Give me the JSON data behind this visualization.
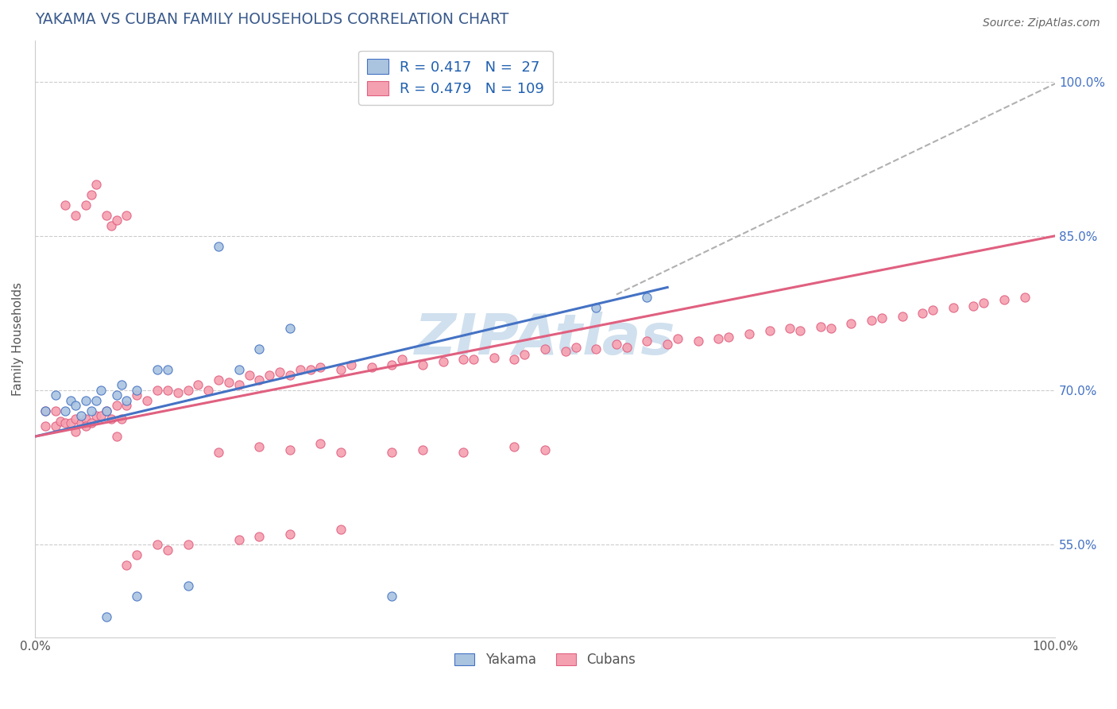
{
  "title": "YAKAMA VS CUBAN FAMILY HOUSEHOLDS CORRELATION CHART",
  "source": "Source: ZipAtlas.com",
  "ylabel": "Family Households",
  "xlim": [
    0.0,
    1.0
  ],
  "ylim": [
    0.46,
    1.04
  ],
  "title_color": "#3a5a8c",
  "title_fontsize": 13.5,
  "background_color": "#ffffff",
  "grid_color": "#cccccc",
  "yakama_color": "#aac4e0",
  "cuban_color": "#f5a0b0",
  "yakama_edge": "#4472c4",
  "cuban_edge": "#e06080",
  "trendline1_color": "#4472c4",
  "trendline2_color": "#e06080",
  "trendline3_color": "#b0b0b0",
  "right_ytick_labels": [
    "55.0%",
    "70.0%",
    "85.0%",
    "100.0%"
  ],
  "right_ytick_values": [
    0.55,
    0.7,
    0.85,
    1.0
  ],
  "ytick_color": "#4472c4",
  "xtick_color": "#555555",
  "yakama_label": "Yakama",
  "cuban_label": "Cubans",
  "legend_text_color": "#2060b0",
  "watermark_color": "#d0e0ee",
  "yak_trend_x0": 0.0,
  "yak_trend_x1": 0.62,
  "yak_trend_y0": 0.655,
  "yak_trend_y1": 0.8,
  "grey_trend_x0": 0.57,
  "grey_trend_x1": 1.0,
  "grey_trend_y0": 0.793,
  "grey_trend_y1": 0.998,
  "cub_trend_x0": 0.0,
  "cub_trend_x1": 1.0,
  "cub_trend_y0": 0.655,
  "cub_trend_y1": 0.85,
  "yakama_x": [
    0.01,
    0.02,
    0.03,
    0.035,
    0.04,
    0.045,
    0.05,
    0.055,
    0.06,
    0.065,
    0.07,
    0.08,
    0.085,
    0.09,
    0.1,
    0.12,
    0.13,
    0.18,
    0.2,
    0.22,
    0.25,
    0.35,
    0.55,
    0.6,
    0.07,
    0.1,
    0.15
  ],
  "yakama_y": [
    0.68,
    0.695,
    0.68,
    0.69,
    0.685,
    0.675,
    0.69,
    0.68,
    0.69,
    0.7,
    0.68,
    0.695,
    0.705,
    0.69,
    0.7,
    0.72,
    0.72,
    0.84,
    0.72,
    0.74,
    0.76,
    0.5,
    0.78,
    0.79,
    0.48,
    0.5,
    0.51
  ],
  "cuban_x": [
    0.01,
    0.01,
    0.02,
    0.02,
    0.025,
    0.03,
    0.035,
    0.04,
    0.04,
    0.045,
    0.05,
    0.05,
    0.055,
    0.06,
    0.065,
    0.07,
    0.075,
    0.08,
    0.085,
    0.09,
    0.1,
    0.11,
    0.12,
    0.13,
    0.14,
    0.15,
    0.16,
    0.17,
    0.18,
    0.19,
    0.2,
    0.21,
    0.22,
    0.23,
    0.24,
    0.25,
    0.26,
    0.27,
    0.28,
    0.3,
    0.31,
    0.33,
    0.35,
    0.36,
    0.38,
    0.4,
    0.42,
    0.43,
    0.45,
    0.47,
    0.48,
    0.5,
    0.52,
    0.53,
    0.55,
    0.57,
    0.58,
    0.6,
    0.62,
    0.63,
    0.65,
    0.67,
    0.68,
    0.7,
    0.72,
    0.74,
    0.75,
    0.77,
    0.78,
    0.8,
    0.82,
    0.83,
    0.85,
    0.87,
    0.88,
    0.9,
    0.92,
    0.93,
    0.95,
    0.97,
    0.3,
    0.35,
    0.38,
    0.42,
    0.47,
    0.5,
    0.18,
    0.22,
    0.25,
    0.28,
    0.08,
    0.09,
    0.1,
    0.12,
    0.13,
    0.15,
    0.2,
    0.22,
    0.25,
    0.3,
    0.03,
    0.04,
    0.05,
    0.055,
    0.06,
    0.07,
    0.075,
    0.08,
    0.09
  ],
  "cuban_y": [
    0.665,
    0.68,
    0.665,
    0.68,
    0.67,
    0.668,
    0.668,
    0.672,
    0.66,
    0.668,
    0.672,
    0.665,
    0.668,
    0.675,
    0.675,
    0.68,
    0.672,
    0.685,
    0.672,
    0.685,
    0.695,
    0.69,
    0.7,
    0.7,
    0.698,
    0.7,
    0.705,
    0.7,
    0.71,
    0.708,
    0.705,
    0.715,
    0.71,
    0.715,
    0.718,
    0.715,
    0.72,
    0.72,
    0.722,
    0.72,
    0.725,
    0.722,
    0.725,
    0.73,
    0.725,
    0.728,
    0.73,
    0.73,
    0.732,
    0.73,
    0.735,
    0.74,
    0.738,
    0.742,
    0.74,
    0.745,
    0.742,
    0.748,
    0.745,
    0.75,
    0.748,
    0.75,
    0.752,
    0.755,
    0.758,
    0.76,
    0.758,
    0.762,
    0.76,
    0.765,
    0.768,
    0.77,
    0.772,
    0.775,
    0.778,
    0.78,
    0.782,
    0.785,
    0.788,
    0.79,
    0.64,
    0.64,
    0.642,
    0.64,
    0.645,
    0.642,
    0.64,
    0.645,
    0.642,
    0.648,
    0.655,
    0.53,
    0.54,
    0.55,
    0.545,
    0.55,
    0.555,
    0.558,
    0.56,
    0.565,
    0.88,
    0.87,
    0.88,
    0.89,
    0.9,
    0.87,
    0.86,
    0.865,
    0.87
  ]
}
